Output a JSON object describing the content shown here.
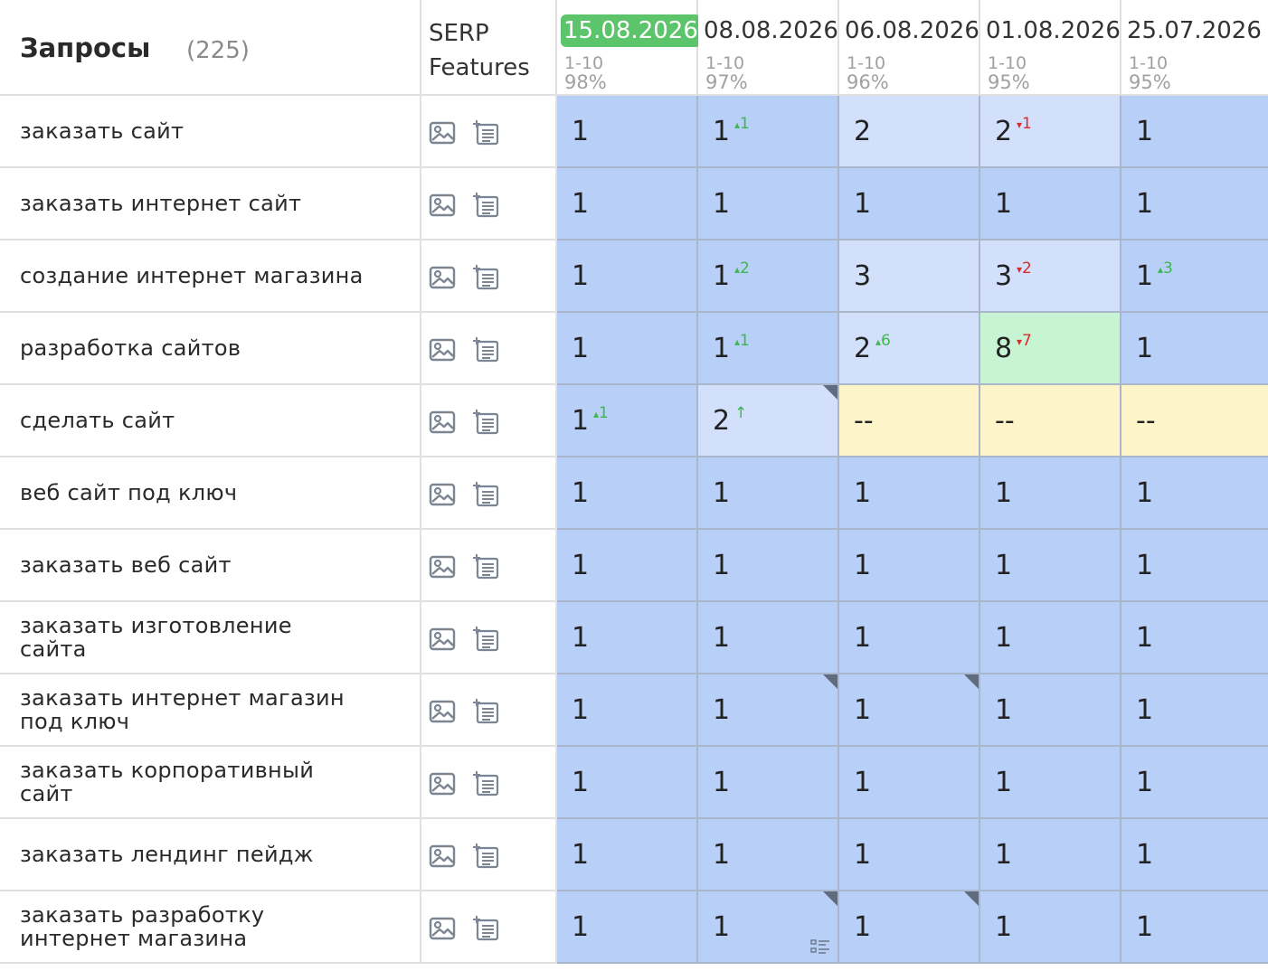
{
  "header": {
    "title": "Запросы",
    "count": "(225)",
    "serp_line1": "SERP",
    "serp_line2": "Features"
  },
  "dates": [
    {
      "date": "15.08.2026",
      "range": "1-10",
      "pct": "98%",
      "active": true
    },
    {
      "date": "08.08.2026",
      "range": "1-10",
      "pct": "97%",
      "active": false
    },
    {
      "date": "06.08.2026",
      "range": "1-10",
      "pct": "96%",
      "active": false
    },
    {
      "date": "01.08.2026",
      "range": "1-10",
      "pct": "95%",
      "active": false
    },
    {
      "date": "25.07.2026",
      "range": "1-10",
      "pct": "95%",
      "active": false
    }
  ],
  "colors": {
    "top": "#b8cff8",
    "good": "#d2e0fc",
    "green": "#c7f5d3",
    "missing": "#fdf5c9",
    "grid_line": "#a9b6cc",
    "active_date": "#5cc46a",
    "up": "#3fb64e",
    "down": "#d92c2c"
  },
  "icons": {
    "serp_image": "image-icon",
    "serp_featured": "featured-snippet-icon"
  },
  "rows": [
    {
      "query": "заказать сайт",
      "cells": [
        {
          "v": "1",
          "bg": "top"
        },
        {
          "v": "1",
          "chg": "1",
          "dir": "up",
          "bg": "top"
        },
        {
          "v": "2",
          "bg": "good"
        },
        {
          "v": "2",
          "chg": "1",
          "dir": "down",
          "bg": "good"
        },
        {
          "v": "1",
          "bg": "top"
        }
      ]
    },
    {
      "query": "заказать интернет сайт",
      "cells": [
        {
          "v": "1",
          "bg": "top"
        },
        {
          "v": "1",
          "bg": "top"
        },
        {
          "v": "1",
          "bg": "top"
        },
        {
          "v": "1",
          "bg": "top"
        },
        {
          "v": "1",
          "bg": "top"
        }
      ]
    },
    {
      "query": "создание интернет магазина",
      "cells": [
        {
          "v": "1",
          "bg": "top"
        },
        {
          "v": "1",
          "chg": "2",
          "dir": "up",
          "bg": "top"
        },
        {
          "v": "3",
          "bg": "good"
        },
        {
          "v": "3",
          "chg": "2",
          "dir": "down",
          "bg": "good"
        },
        {
          "v": "1",
          "chg": "3",
          "dir": "up",
          "bg": "top"
        }
      ]
    },
    {
      "query": "разработка сайтов",
      "cells": [
        {
          "v": "1",
          "bg": "top"
        },
        {
          "v": "1",
          "chg": "1",
          "dir": "up",
          "bg": "top"
        },
        {
          "v": "2",
          "chg": "6",
          "dir": "up",
          "bg": "good"
        },
        {
          "v": "8",
          "chg": "7",
          "dir": "down",
          "bg": "green"
        },
        {
          "v": "1",
          "bg": "top"
        }
      ]
    },
    {
      "query": "сделать сайт",
      "cells": [
        {
          "v": "1",
          "chg": "1",
          "dir": "up",
          "bg": "top"
        },
        {
          "v": "2",
          "chg": "↑",
          "dir": "new",
          "bg": "good",
          "corner": true
        },
        {
          "v": "--",
          "bg": "missing"
        },
        {
          "v": "--",
          "bg": "missing"
        },
        {
          "v": "--",
          "bg": "missing"
        }
      ]
    },
    {
      "query": "веб сайт под ключ",
      "cells": [
        {
          "v": "1",
          "bg": "top"
        },
        {
          "v": "1",
          "bg": "top"
        },
        {
          "v": "1",
          "bg": "top"
        },
        {
          "v": "1",
          "bg": "top"
        },
        {
          "v": "1",
          "bg": "top"
        }
      ]
    },
    {
      "query": "заказать веб сайт",
      "cells": [
        {
          "v": "1",
          "bg": "top"
        },
        {
          "v": "1",
          "bg": "top"
        },
        {
          "v": "1",
          "bg": "top"
        },
        {
          "v": "1",
          "bg": "top"
        },
        {
          "v": "1",
          "bg": "top"
        }
      ]
    },
    {
      "query": "заказать изготовление сайта",
      "cells": [
        {
          "v": "1",
          "bg": "top"
        },
        {
          "v": "1",
          "bg": "top"
        },
        {
          "v": "1",
          "bg": "top"
        },
        {
          "v": "1",
          "bg": "top"
        },
        {
          "v": "1",
          "bg": "top"
        }
      ]
    },
    {
      "query": "заказать интернет магазин под ключ",
      "cells": [
        {
          "v": "1",
          "bg": "top"
        },
        {
          "v": "1",
          "bg": "top",
          "corner": true
        },
        {
          "v": "1",
          "bg": "top",
          "corner": true
        },
        {
          "v": "1",
          "bg": "top"
        },
        {
          "v": "1",
          "bg": "top"
        }
      ]
    },
    {
      "query": "заказать корпоративный сайт",
      "cells": [
        {
          "v": "1",
          "bg": "top"
        },
        {
          "v": "1",
          "bg": "top"
        },
        {
          "v": "1",
          "bg": "top"
        },
        {
          "v": "1",
          "bg": "top"
        },
        {
          "v": "1",
          "bg": "top"
        }
      ]
    },
    {
      "query": "заказать лендинг пейдж",
      "cells": [
        {
          "v": "1",
          "bg": "top"
        },
        {
          "v": "1",
          "bg": "top"
        },
        {
          "v": "1",
          "bg": "top"
        },
        {
          "v": "1",
          "bg": "top"
        },
        {
          "v": "1",
          "bg": "top"
        }
      ]
    },
    {
      "query": "заказать разработку интернет магазина",
      "cells": [
        {
          "v": "1",
          "bg": "top"
        },
        {
          "v": "1",
          "bg": "top",
          "corner": true,
          "list": true
        },
        {
          "v": "1",
          "bg": "top",
          "corner": true
        },
        {
          "v": "1",
          "bg": "top"
        },
        {
          "v": "1",
          "bg": "top"
        }
      ]
    }
  ]
}
